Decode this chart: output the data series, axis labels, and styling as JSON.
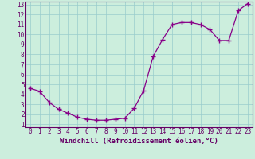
{
  "x": [
    0,
    1,
    2,
    3,
    4,
    5,
    6,
    7,
    8,
    9,
    10,
    11,
    12,
    13,
    14,
    15,
    16,
    17,
    18,
    19,
    20,
    21,
    22,
    23
  ],
  "y": [
    4.6,
    4.3,
    3.2,
    2.5,
    2.1,
    1.7,
    1.5,
    1.4,
    1.4,
    1.5,
    1.6,
    2.6,
    4.4,
    7.8,
    9.5,
    11.0,
    11.2,
    11.2,
    11.0,
    10.5,
    9.4,
    9.4,
    12.4,
    13.1
  ],
  "line_color": "#880088",
  "bg_color": "#cceedd",
  "grid_color": "#99cccc",
  "axis_color": "#660066",
  "tick_color": "#660066",
  "xlabel": "Windchill (Refroidissement éolien,°C)",
  "xlim": [
    -0.5,
    23.5
  ],
  "ylim": [
    0.7,
    13.3
  ],
  "xticks": [
    0,
    1,
    2,
    3,
    4,
    5,
    6,
    7,
    8,
    9,
    10,
    11,
    12,
    13,
    14,
    15,
    16,
    17,
    18,
    19,
    20,
    21,
    22,
    23
  ],
  "yticks": [
    1,
    2,
    3,
    4,
    5,
    6,
    7,
    8,
    9,
    10,
    11,
    12,
    13
  ],
  "xlabel_fontsize": 6.5,
  "tick_fontsize": 5.5,
  "marker": "+",
  "markersize": 4.0,
  "linewidth": 0.9
}
